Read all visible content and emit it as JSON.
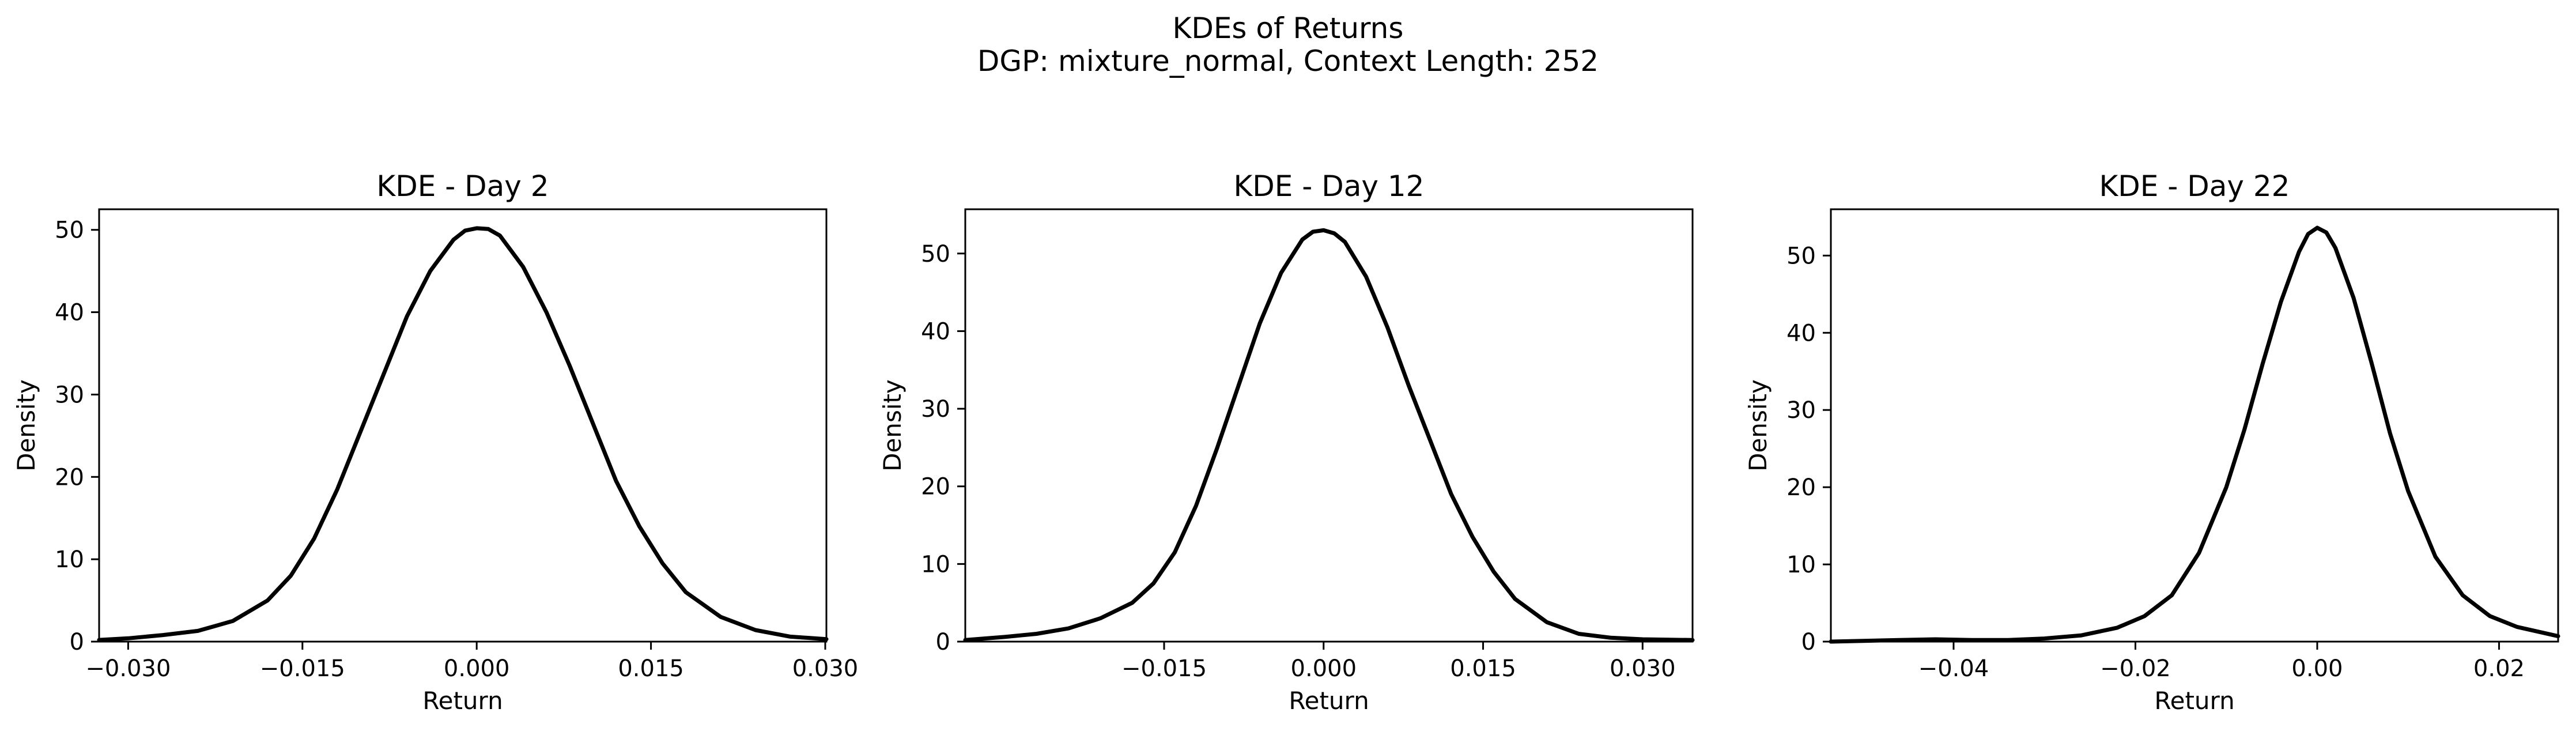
{
  "figure": {
    "suptitle_line1": "KDEs of Returns",
    "suptitle_line2": "DGP: mixture_normal, Context Length: 252"
  },
  "chart_data": [
    {
      "type": "line",
      "title": "KDE - Day 2",
      "xlabel": "Return",
      "ylabel": "Density",
      "xlim": [
        -0.0325,
        0.0301
      ],
      "ylim": [
        0,
        52.5
      ],
      "xticks": [
        -0.03,
        -0.015,
        0.0,
        0.015,
        0.03
      ],
      "xtick_labels": [
        "−0.030",
        "−0.015",
        "0.000",
        "0.015",
        "0.030"
      ],
      "yticks": [
        0,
        10,
        20,
        30,
        40,
        50
      ],
      "ytick_labels": [
        "0",
        "10",
        "20",
        "30",
        "40",
        "50"
      ],
      "grid": false,
      "line_color": "#000000",
      "series": [
        {
          "x": [
            -0.0325,
            -0.03,
            -0.027,
            -0.024,
            -0.021,
            -0.018,
            -0.016,
            -0.014,
            -0.012,
            -0.01,
            -0.008,
            -0.006,
            -0.004,
            -0.002,
            -0.001,
            0.0,
            0.001,
            0.002,
            0.004,
            0.006,
            0.008,
            0.01,
            0.012,
            0.014,
            0.016,
            0.018,
            0.021,
            0.024,
            0.027,
            0.0301
          ],
          "y": [
            0.2,
            0.4,
            0.8,
            1.3,
            2.5,
            5.0,
            8.0,
            12.5,
            18.5,
            25.5,
            32.5,
            39.5,
            45.0,
            48.8,
            49.9,
            50.2,
            50.1,
            49.3,
            45.5,
            40.0,
            33.5,
            26.5,
            19.5,
            14.0,
            9.5,
            6.0,
            3.0,
            1.4,
            0.6,
            0.3
          ]
        }
      ]
    },
    {
      "type": "line",
      "title": "KDE - Day 12",
      "xlabel": "Return",
      "ylabel": "Density",
      "xlim": [
        -0.0337,
        0.0347
      ],
      "ylim": [
        0,
        55.7
      ],
      "xticks": [
        -0.015,
        0.0,
        0.015,
        0.03
      ],
      "xtick_labels": [
        "−0.015",
        "0.000",
        "0.015",
        "0.030"
      ],
      "yticks": [
        0,
        10,
        20,
        30,
        40,
        50
      ],
      "ytick_labels": [
        "0",
        "10",
        "20",
        "30",
        "40",
        "50"
      ],
      "grid": false,
      "line_color": "#000000",
      "series": [
        {
          "x": [
            -0.0337,
            -0.03,
            -0.027,
            -0.024,
            -0.021,
            -0.018,
            -0.016,
            -0.014,
            -0.012,
            -0.01,
            -0.008,
            -0.006,
            -0.004,
            -0.002,
            -0.001,
            0.0,
            0.001,
            0.002,
            0.004,
            0.006,
            0.008,
            0.01,
            0.012,
            0.014,
            0.016,
            0.018,
            0.021,
            0.024,
            0.027,
            0.03,
            0.0347
          ],
          "y": [
            0.2,
            0.6,
            1.0,
            1.7,
            3.0,
            5.0,
            7.5,
            11.5,
            17.5,
            25.0,
            33.0,
            41.0,
            47.5,
            51.8,
            52.8,
            53.0,
            52.6,
            51.5,
            47.0,
            40.5,
            33.0,
            26.0,
            19.0,
            13.5,
            9.0,
            5.5,
            2.5,
            1.0,
            0.5,
            0.3,
            0.2
          ]
        }
      ]
    },
    {
      "type": "line",
      "title": "KDE - Day 22",
      "xlabel": "Return",
      "ylabel": "Density",
      "xlim": [
        -0.0535,
        0.0265
      ],
      "ylim": [
        0,
        56.0
      ],
      "xticks": [
        -0.04,
        -0.02,
        0.0,
        0.02
      ],
      "xtick_labels": [
        "−0.04",
        "−0.02",
        "0.00",
        "0.02"
      ],
      "yticks": [
        0,
        10,
        20,
        30,
        40,
        50
      ],
      "ytick_labels": [
        "0",
        "10",
        "20",
        "30",
        "40",
        "50"
      ],
      "grid": false,
      "line_color": "#000000",
      "series": [
        {
          "x": [
            -0.0535,
            -0.05,
            -0.046,
            -0.042,
            -0.038,
            -0.034,
            -0.03,
            -0.026,
            -0.022,
            -0.019,
            -0.016,
            -0.013,
            -0.01,
            -0.008,
            -0.006,
            -0.004,
            -0.002,
            -0.001,
            0.0,
            0.001,
            0.002,
            0.004,
            0.006,
            0.008,
            0.01,
            0.013,
            0.016,
            0.019,
            0.022,
            0.0265
          ],
          "y": [
            0.0,
            0.1,
            0.2,
            0.3,
            0.2,
            0.2,
            0.4,
            0.8,
            1.8,
            3.3,
            6.0,
            11.5,
            20.0,
            27.5,
            36.0,
            44.0,
            50.5,
            52.8,
            53.6,
            53.0,
            51.0,
            44.5,
            36.0,
            27.0,
            19.5,
            11.0,
            6.0,
            3.3,
            1.9,
            0.7
          ]
        }
      ]
    }
  ]
}
